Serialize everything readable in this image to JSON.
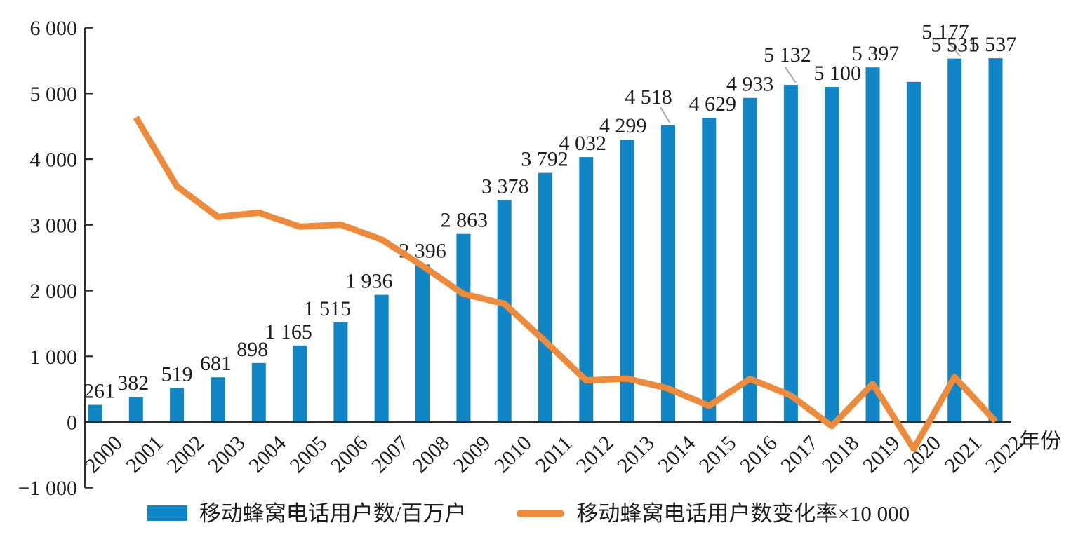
{
  "chart_data": {
    "type": "bar+line",
    "title": "",
    "x_axis_label": "年份",
    "categories": [
      "2000",
      "2001",
      "2002",
      "2003",
      "2004",
      "2005",
      "2006",
      "2007",
      "2008",
      "2009",
      "2010",
      "2011",
      "2012",
      "2013",
      "2014",
      "2015",
      "2016",
      "2017",
      "2018",
      "2019",
      "2020",
      "2021",
      "2022"
    ],
    "y_axis": {
      "range": [
        -1000,
        6000
      ],
      "ticks": [
        {
          "value": 6000,
          "label": "6 000"
        },
        {
          "value": 5000,
          "label": "5 000"
        },
        {
          "value": 4000,
          "label": "4 000"
        },
        {
          "value": 3000,
          "label": "3 000"
        },
        {
          "value": 2000,
          "label": "2 000"
        },
        {
          "value": 1000,
          "label": "1 000"
        },
        {
          "value": 0,
          "label": "0"
        },
        {
          "value": -1000,
          "label": "−1 000"
        }
      ]
    },
    "grid": false,
    "legend_position": "bottom",
    "series": [
      {
        "name": "移动蜂窝电话用户数/百万户",
        "type": "bar",
        "color": "#1086C6",
        "values": [
          261,
          382,
          519,
          681,
          898,
          1165,
          1515,
          1936,
          2396,
          2863,
          3378,
          3792,
          4032,
          4299,
          4518,
          4629,
          4933,
          5132,
          5100,
          5397,
          5177,
          5531,
          5537
        ],
        "data_labels": [
          "261",
          "382",
          "519",
          "681",
          "898",
          "1 165",
          "1 515",
          "1 936",
          "2 396",
          "2 863",
          "3 378",
          "3 792",
          "4 032",
          "4 299",
          "4 518",
          "4 629",
          "4 933",
          "5 132",
          "5 100",
          "5 397",
          "5 177",
          "5 531",
          "5 537"
        ]
      },
      {
        "name": "移动蜂窝电话用户数变化率×10 000",
        "type": "line",
        "color": "#EE8A3C",
        "x": [
          "2001",
          "2002",
          "2003",
          "2004",
          "2005",
          "2006",
          "2007",
          "2008",
          "2009",
          "2010",
          "2011",
          "2012",
          "2013",
          "2014",
          "2015",
          "2016",
          "2017",
          "2018",
          "2019",
          "2020",
          "2021",
          "2022"
        ],
        "values": [
          4636,
          3586,
          3121,
          3186,
          2973,
          3004,
          2779,
          2376,
          1949,
          1799,
          1226,
          633,
          662,
          509,
          246,
          657,
          403,
          -62,
          582,
          -408,
          684,
          11
        ]
      }
    ],
    "annotation_colors": {
      "leader_line": "#a8a8a8",
      "axis": "#2d2d2d",
      "text": "#1d1d1d"
    }
  }
}
